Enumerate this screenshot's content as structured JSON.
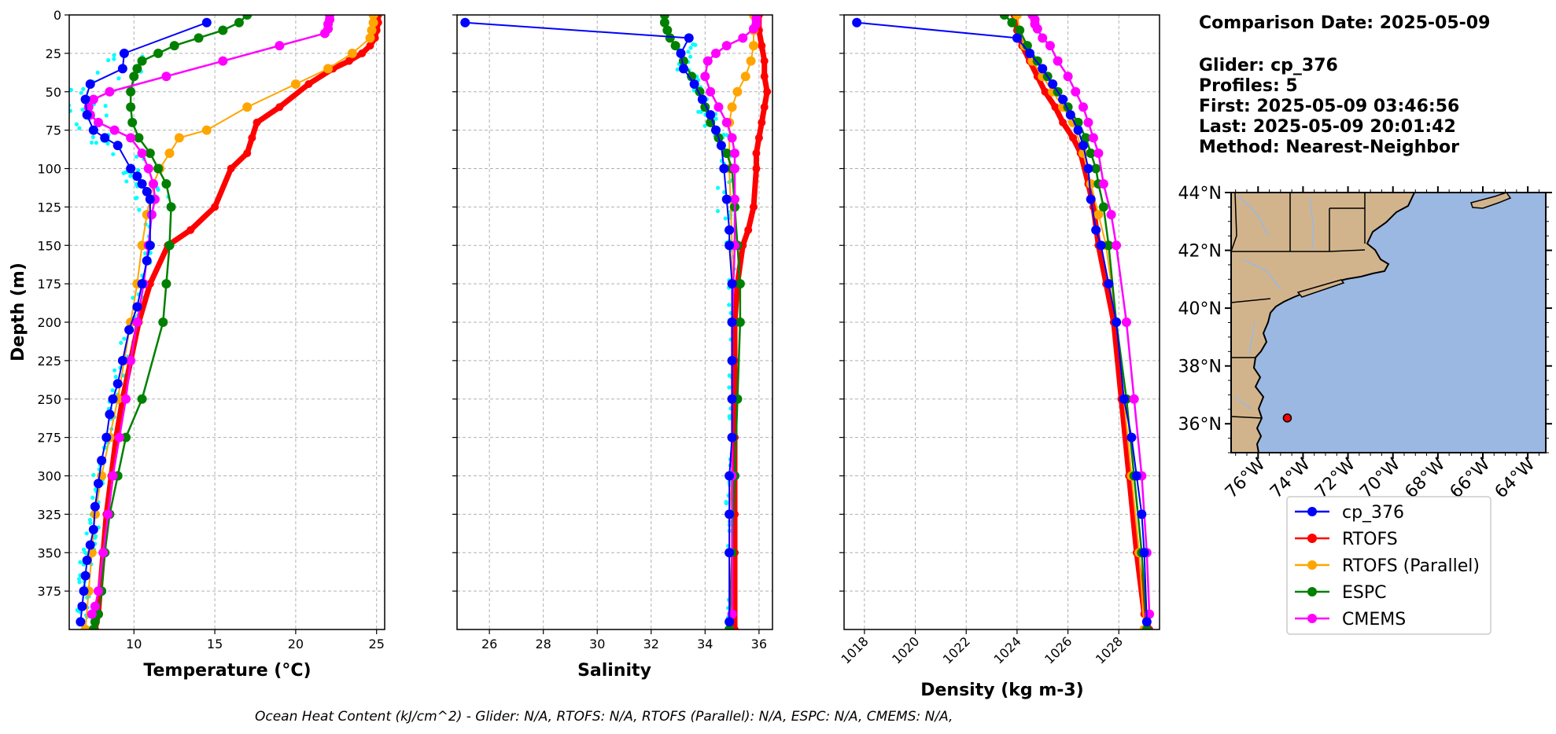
{
  "colors": {
    "cp_376": "#0000ff",
    "RTOFS": "#ff0000",
    "RTOFS (Parallel)": "#ffa500",
    "ESPC": "#008000",
    "CMEMS": "#ff00ff",
    "scatter": "#00ffff",
    "land": "#d2b48c",
    "ocean": "#9ab8e2"
  },
  "info": {
    "line1": "Comparison Date: 2025-05-09",
    "line2": "Glider: cp_376",
    "line3": "Profiles: 5",
    "line4": "First: 2025-05-09 03:46:56",
    "line5": "Last: 2025-05-09 20:01:42",
    "line6": "Method: Nearest-Neighbor"
  },
  "footer": "Ocean Heat Content (kJ/cm^2) - Glider: N/A,  RTOFS: N/A,  RTOFS (Parallel): N/A,  ESPC: N/A,  CMEMS: N/A,",
  "legend": [
    "cp_376",
    "RTOFS",
    "RTOFS (Parallel)",
    "ESPC",
    "CMEMS"
  ],
  "map": {
    "lat_ticks": [
      "44°N",
      "42°N",
      "40°N",
      "38°N",
      "36°N"
    ],
    "lon_ticks": [
      "76°W",
      "74°W",
      "72°W",
      "70°W",
      "68°W",
      "66°W",
      "64°W"
    ],
    "marker": {
      "lon": -74.7,
      "lat": 36.2
    }
  },
  "chart_data": [
    {
      "type": "line",
      "xlabel": "Temperature (°C)",
      "ylabel": "Depth (m)",
      "xlim": [
        6,
        25.5
      ],
      "ylim": [
        400,
        0
      ],
      "xticks": [
        10,
        15,
        20,
        25
      ],
      "yticks": [
        0,
        25,
        50,
        75,
        100,
        125,
        150,
        175,
        200,
        225,
        250,
        275,
        300,
        325,
        350,
        375
      ],
      "grid": true,
      "series": [
        {
          "name": "RTOFS",
          "x": [
            25.1,
            25.1,
            25.0,
            24.9,
            24.6,
            24.1,
            23.3,
            22.3,
            20.8,
            19.0,
            17.6,
            17.3,
            17.0,
            16.0,
            15.0,
            13.5,
            12.1,
            11.0,
            10.3,
            9.8,
            9.3,
            8.9,
            8.6,
            8.3,
            8.1,
            7.9,
            7.8,
            7.6
          ],
          "y": [
            0,
            5,
            10,
            15,
            20,
            25,
            30,
            35,
            45,
            60,
            70,
            80,
            90,
            100,
            125,
            140,
            150,
            175,
            200,
            225,
            250,
            275,
            300,
            325,
            350,
            375,
            390,
            400
          ]
        },
        {
          "name": "RTOFS (Parallel)",
          "x": [
            24.8,
            24.8,
            24.7,
            24.6,
            23.5,
            22.0,
            20.0,
            17.0,
            14.5,
            12.8,
            12.2,
            11.6,
            11.2,
            11.0,
            10.8,
            10.5,
            10.2,
            9.8,
            9.4,
            9.0,
            8.5,
            8.0,
            7.6,
            7.4,
            7.2,
            7.0
          ],
          "y": [
            0,
            5,
            10,
            15,
            25,
            35,
            45,
            60,
            75,
            80,
            90,
            100,
            110,
            120,
            130,
            150,
            175,
            200,
            225,
            250,
            275,
            300,
            325,
            350,
            375,
            400
          ]
        },
        {
          "name": "ESPC",
          "x": [
            17.0,
            16.5,
            15.5,
            14.0,
            12.5,
            11.5,
            10.5,
            10.2,
            10.0,
            9.8,
            9.8,
            9.9,
            10.3,
            11.0,
            11.5,
            12.0,
            12.3,
            12.2,
            12.0,
            11.8,
            10.5,
            9.5,
            9.0,
            8.5,
            8.2,
            8.0,
            7.8,
            7.6,
            7.5
          ],
          "y": [
            0,
            5,
            10,
            15,
            20,
            25,
            30,
            35,
            40,
            50,
            60,
            70,
            80,
            90,
            100,
            110,
            125,
            150,
            175,
            200,
            250,
            275,
            300,
            325,
            350,
            375,
            390,
            395,
            400
          ]
        },
        {
          "name": "CMEMS",
          "x": [
            22.1,
            22.1,
            22.0,
            22.0,
            21.8,
            19.0,
            15.5,
            12.0,
            8.5,
            7.5,
            7.2,
            7.3,
            7.8,
            8.8,
            9.8,
            10.5,
            10.9,
            11.2,
            11.3,
            11.1,
            10.9,
            10.6,
            10.2,
            9.8,
            9.5,
            9.1,
            8.7,
            8.4,
            8.1,
            7.8,
            7.6,
            7.4
          ],
          "y": [
            0,
            3,
            6,
            9,
            12,
            20,
            30,
            40,
            50,
            55,
            60,
            65,
            70,
            75,
            80,
            90,
            100,
            110,
            120,
            130,
            150,
            175,
            200,
            225,
            250,
            275,
            300,
            325,
            350,
            375,
            385,
            390
          ]
        },
        {
          "name": "cp_376",
          "x": [
            14.5,
            9.4,
            9.3,
            7.3,
            7.0,
            7.1,
            7.5,
            8.2,
            9.0,
            9.8,
            10.2,
            10.5,
            10.8,
            11.0,
            11.0,
            10.8,
            10.5,
            10.2,
            9.7,
            9.3,
            9.0,
            8.7,
            8.5,
            8.3,
            8.0,
            7.8,
            7.6,
            7.5,
            7.3,
            7.1,
            7.0,
            6.9,
            6.8,
            6.7
          ],
          "y": [
            5,
            25,
            35,
            45,
            55,
            65,
            75,
            80,
            85,
            100,
            105,
            110,
            115,
            120,
            150,
            160,
            175,
            190,
            205,
            225,
            240,
            250,
            260,
            275,
            290,
            305,
            320,
            335,
            345,
            355,
            365,
            375,
            385,
            395
          ]
        }
      ]
    },
    {
      "type": "line",
      "xlabel": "Salinity",
      "xlim": [
        24.8,
        36.5
      ],
      "ylim": [
        400,
        0
      ],
      "xticks": [
        26,
        28,
        30,
        32,
        34,
        36
      ],
      "grid": true,
      "series": [
        {
          "name": "RTOFS",
          "x": [
            36.0,
            36.0,
            36.1,
            36.2,
            36.2,
            36.3,
            36.2,
            36.1,
            36.0,
            35.9,
            35.9,
            35.8,
            35.6,
            35.4,
            35.2,
            35.1,
            35.1,
            35.1,
            35.1,
            35.1,
            35.1,
            35.1,
            35.1
          ],
          "y": [
            0,
            10,
            20,
            30,
            40,
            50,
            60,
            70,
            80,
            90,
            100,
            125,
            140,
            150,
            175,
            200,
            225,
            250,
            275,
            300,
            325,
            350,
            400
          ]
        },
        {
          "name": "RTOFS (Parallel)",
          "x": [
            35.8,
            35.8,
            35.8,
            35.7,
            35.5,
            35.2,
            35.0,
            34.9,
            34.9,
            35.0,
            35.0,
            35.0,
            35.0,
            35.0,
            34.9,
            34.9,
            34.9
          ],
          "y": [
            0,
            10,
            20,
            30,
            40,
            50,
            60,
            70,
            100,
            150,
            200,
            250,
            275,
            300,
            325,
            350,
            400
          ]
        },
        {
          "name": "ESPC",
          "x": [
            32.5,
            32.5,
            32.6,
            32.7,
            32.9,
            33.2,
            33.5,
            33.8,
            34.0,
            34.2,
            34.5,
            34.8,
            35.0,
            35.1,
            35.2,
            35.3,
            35.3,
            35.2,
            35.1,
            35.0,
            34.9
          ],
          "y": [
            0,
            5,
            10,
            15,
            20,
            30,
            40,
            50,
            60,
            70,
            80,
            90,
            100,
            125,
            150,
            175,
            200,
            250,
            300,
            350,
            400
          ]
        },
        {
          "name": "CMEMS",
          "x": [
            35.9,
            35.9,
            35.9,
            35.8,
            35.4,
            34.8,
            34.4,
            34.1,
            34.0,
            34.2,
            34.5,
            34.8,
            35.0,
            35.1,
            35.1,
            35.1,
            35.1,
            35.0,
            35.0,
            35.0
          ],
          "y": [
            0,
            3,
            6,
            9,
            15,
            20,
            25,
            30,
            40,
            50,
            60,
            70,
            80,
            90,
            100,
            120,
            150,
            200,
            300,
            390
          ]
        },
        {
          "name": "cp_376",
          "x": [
            25.1,
            33.4,
            33.1,
            33.2,
            33.6,
            33.9,
            34.2,
            34.4,
            34.6,
            34.7,
            34.8,
            34.9,
            34.9,
            35.0,
            35.0,
            35.0,
            35.0,
            35.0,
            34.9,
            34.9,
            34.9,
            34.9
          ],
          "y": [
            5,
            15,
            25,
            35,
            45,
            55,
            65,
            75,
            85,
            100,
            120,
            140,
            150,
            175,
            200,
            225,
            250,
            275,
            300,
            325,
            350,
            395
          ]
        }
      ]
    },
    {
      "type": "line",
      "xlabel": "Density (kg m-3)",
      "xlim": [
        1017.2,
        1029.6
      ],
      "ylim": [
        400,
        0
      ],
      "xticks": [
        1018,
        1020,
        1022,
        1024,
        1026,
        1028
      ],
      "grid": true,
      "series": [
        {
          "name": "RTOFS",
          "x": [
            1023.9,
            1024.0,
            1024.2,
            1024.5,
            1024.8,
            1025.1,
            1025.5,
            1025.8,
            1026.2,
            1026.5,
            1026.8,
            1027.0,
            1027.2,
            1027.5,
            1027.8,
            1028.1,
            1028.4,
            1028.7,
            1029.0,
            1029.2
          ],
          "y": [
            0,
            10,
            20,
            30,
            40,
            50,
            60,
            70,
            80,
            90,
            110,
            125,
            150,
            175,
            200,
            250,
            300,
            350,
            390,
            400
          ]
        },
        {
          "name": "RTOFS (Parallel)",
          "x": [
            1024.0,
            1024.1,
            1024.3,
            1024.6,
            1025.0,
            1025.4,
            1025.8,
            1026.2,
            1026.6,
            1026.9,
            1027.2,
            1027.5,
            1027.9,
            1028.2,
            1028.5,
            1028.8,
            1029.0
          ],
          "y": [
            0,
            10,
            20,
            30,
            40,
            50,
            60,
            70,
            90,
            110,
            130,
            150,
            200,
            250,
            300,
            350,
            400
          ]
        },
        {
          "name": "ESPC",
          "x": [
            1023.5,
            1023.8,
            1024.1,
            1024.4,
            1024.8,
            1025.2,
            1025.6,
            1026.0,
            1026.4,
            1026.7,
            1026.9,
            1027.1,
            1027.2,
            1027.4,
            1027.6,
            1027.9,
            1028.3,
            1028.6,
            1028.9,
            1029.1
          ],
          "y": [
            0,
            5,
            10,
            20,
            30,
            40,
            50,
            60,
            70,
            80,
            90,
            100,
            110,
            125,
            150,
            200,
            250,
            300,
            350,
            400
          ]
        },
        {
          "name": "CMEMS",
          "x": [
            1024.6,
            1024.7,
            1024.7,
            1024.8,
            1025.0,
            1025.3,
            1025.6,
            1026.0,
            1026.3,
            1026.6,
            1026.8,
            1027.0,
            1027.2,
            1027.4,
            1027.7,
            1027.9,
            1028.3,
            1028.6,
            1028.9,
            1029.1,
            1029.2
          ],
          "y": [
            0,
            3,
            6,
            9,
            15,
            20,
            30,
            40,
            50,
            60,
            70,
            80,
            90,
            110,
            130,
            150,
            200,
            250,
            300,
            350,
            390
          ]
        },
        {
          "name": "cp_376",
          "x": [
            1017.7,
            1024.0,
            1024.5,
            1025.0,
            1025.4,
            1025.8,
            1026.1,
            1026.4,
            1026.6,
            1026.8,
            1026.9,
            1027.1,
            1027.3,
            1027.6,
            1027.9,
            1028.2,
            1028.5,
            1028.7,
            1028.9,
            1029.0,
            1029.1
          ],
          "y": [
            5,
            15,
            25,
            35,
            45,
            55,
            65,
            75,
            85,
            100,
            120,
            140,
            150,
            175,
            200,
            250,
            275,
            300,
            325,
            350,
            395
          ]
        }
      ]
    }
  ]
}
